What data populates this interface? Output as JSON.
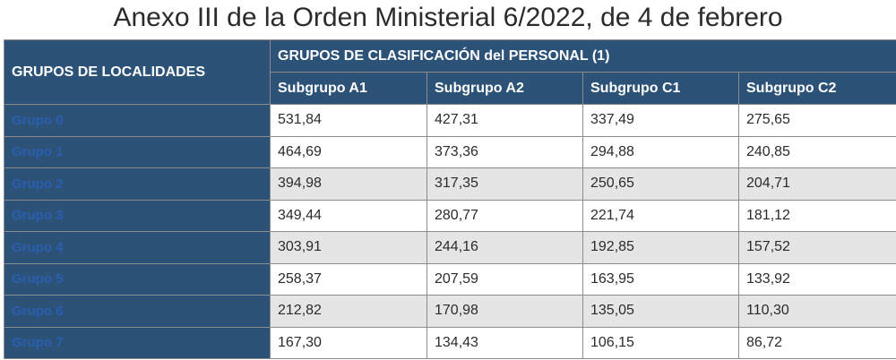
{
  "title": "Anexo III de la Orden Ministerial 6/2022, de 4 de febrero",
  "table": {
    "corner_header": "GRUPOS DE LOCALIDADES",
    "group_header": "GRUPOS DE CLASIFICACIÓN del PERSONAL (1)",
    "columns": [
      "Subgrupo A1",
      "Subgrupo A2",
      "Subgrupo C1",
      "Subgrupo C2"
    ],
    "rows": [
      {
        "label": "Grupo 0",
        "values": [
          "531,84",
          "427,31",
          "337,49",
          "275,65"
        ]
      },
      {
        "label": "Grupo 1",
        "values": [
          "464,69",
          "373,36",
          "294,88",
          "240,85"
        ]
      },
      {
        "label": "Grupo 2",
        "values": [
          "394,98",
          "317,35",
          "250,65",
          "204,71"
        ]
      },
      {
        "label": "Grupo 3",
        "values": [
          "349,44",
          "280,77",
          "221,74",
          "181,12"
        ]
      },
      {
        "label": "Grupo 4",
        "values": [
          "303,91",
          "244,16",
          "192,85",
          "157,52"
        ]
      },
      {
        "label": "Grupo 5",
        "values": [
          "258,37",
          "207,59",
          "163,95",
          "133,92"
        ]
      },
      {
        "label": "Grupo 6",
        "values": [
          "212,82",
          "170,98",
          "135,05",
          "110,30"
        ]
      },
      {
        "label": "Grupo 7",
        "values": [
          "167,30",
          "134,43",
          "106,15",
          "86,72"
        ]
      }
    ]
  }
}
